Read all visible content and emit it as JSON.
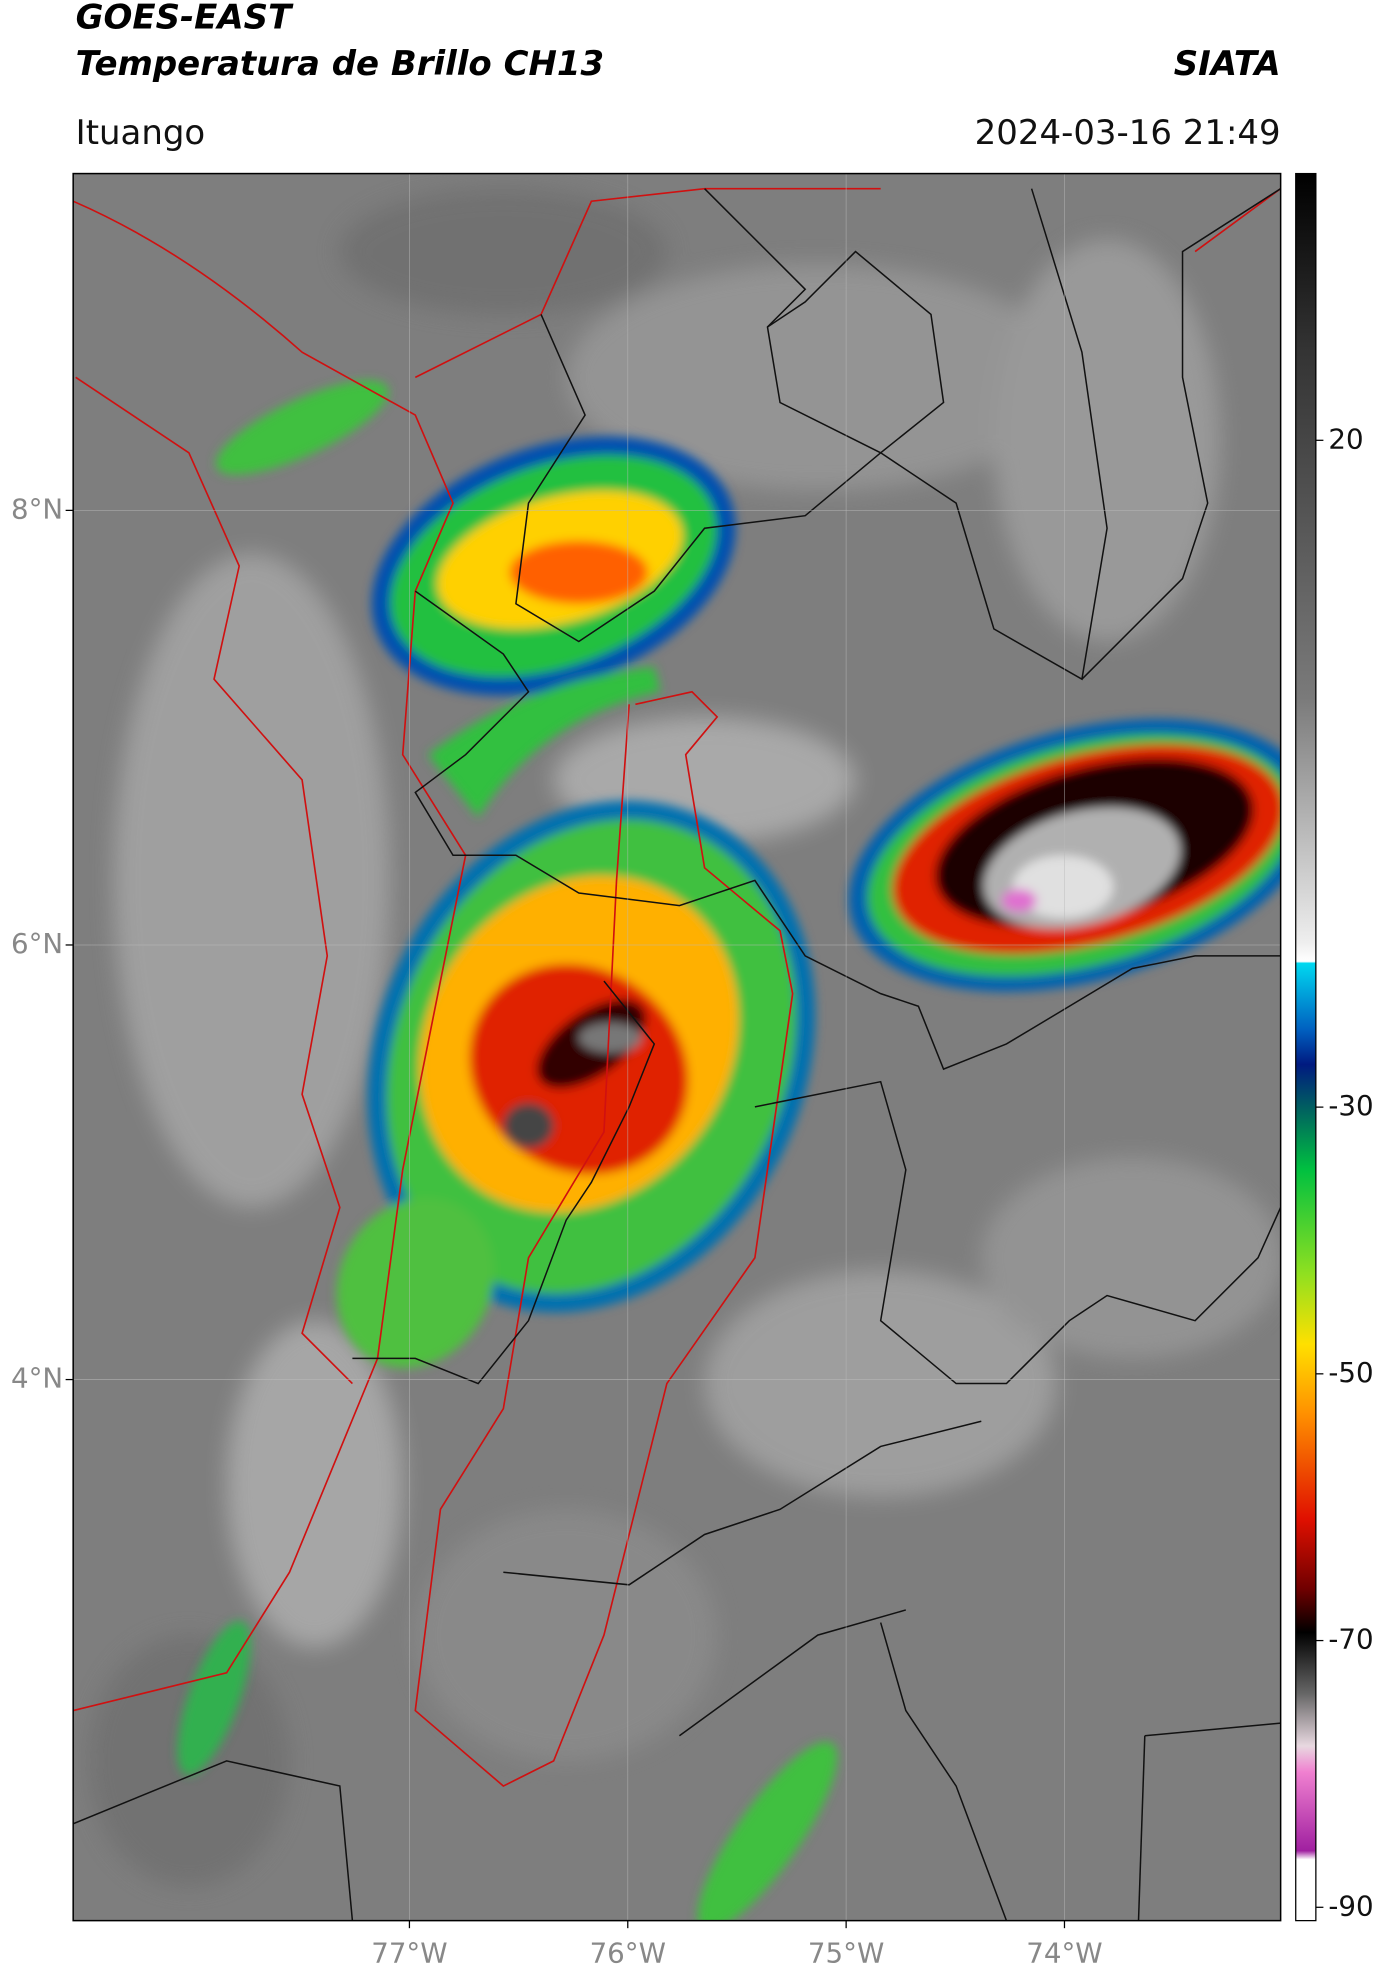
{
  "header": {
    "title": "GOES-EAST",
    "subtitle": "Temperatura de Brillo CH13",
    "source": "SIATA",
    "location": "Ituango",
    "datetime": "2024-03-16 21:49"
  },
  "map": {
    "xlim": [
      -78.54,
      -73.01
    ],
    "ylim": [
      1.51,
      9.55
    ],
    "lat_ticks": [
      {
        "value": 8,
        "label": "8°N"
      },
      {
        "value": 6,
        "label": "6°N"
      },
      {
        "value": 4,
        "label": "4°N"
      }
    ],
    "lon_ticks": [
      {
        "value": -77,
        "label": "77°W"
      },
      {
        "value": -76,
        "label": "76°W"
      },
      {
        "value": -75,
        "label": "75°W"
      },
      {
        "value": -74,
        "label": "74°W"
      }
    ]
  },
  "colorbar": {
    "lim": [
      -91,
      40
    ],
    "ticks": [
      20,
      -30,
      -50,
      -70,
      -90
    ]
  }
}
